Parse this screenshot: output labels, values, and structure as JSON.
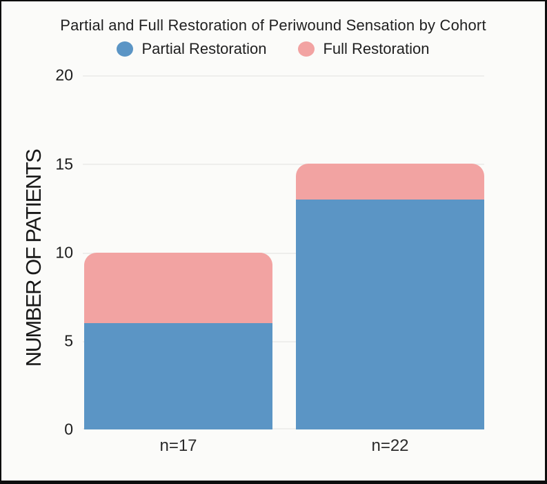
{
  "title": "Partial and Full Restoration of Periwound Sensation by Cohort",
  "legend": {
    "items": [
      {
        "label": "Partial Restoration",
        "color": "#5b95c5"
      },
      {
        "label": "Full Restoration",
        "color": "#f2a3a2"
      }
    ]
  },
  "y_axis": {
    "label": "NUMBER OF PATIENTS",
    "ticks": [
      "0",
      "5",
      "10",
      "15",
      "20"
    ]
  },
  "x_axis": {
    "labels": [
      "n=17",
      "n=22"
    ]
  },
  "colors": {
    "partial_blue": "#5b95c5",
    "full_pink": "#f2a3a2",
    "background": "#fbfbf9",
    "gridline": "#eeeeec",
    "border": "#0d0d0d",
    "text": "#1c1c1c"
  },
  "chart_data": {
    "type": "bar",
    "stacked": true,
    "categories": [
      "n=17",
      "n=22"
    ],
    "series": [
      {
        "name": "Partial Restoration",
        "values": [
          6,
          13
        ],
        "color": "#5b95c5"
      },
      {
        "name": "Full Restoration",
        "values": [
          4,
          2
        ],
        "color": "#f2a3a2"
      }
    ],
    "stack_totals": [
      10,
      15
    ],
    "title": "Partial and Full Restoration of Periwound Sensation by Cohort",
    "xlabel": "",
    "ylabel": "NUMBER OF PATIENTS",
    "ylim": [
      0,
      20
    ],
    "yticks": [
      0,
      5,
      10,
      15,
      20
    ],
    "grid": true,
    "legend_position": "top"
  }
}
